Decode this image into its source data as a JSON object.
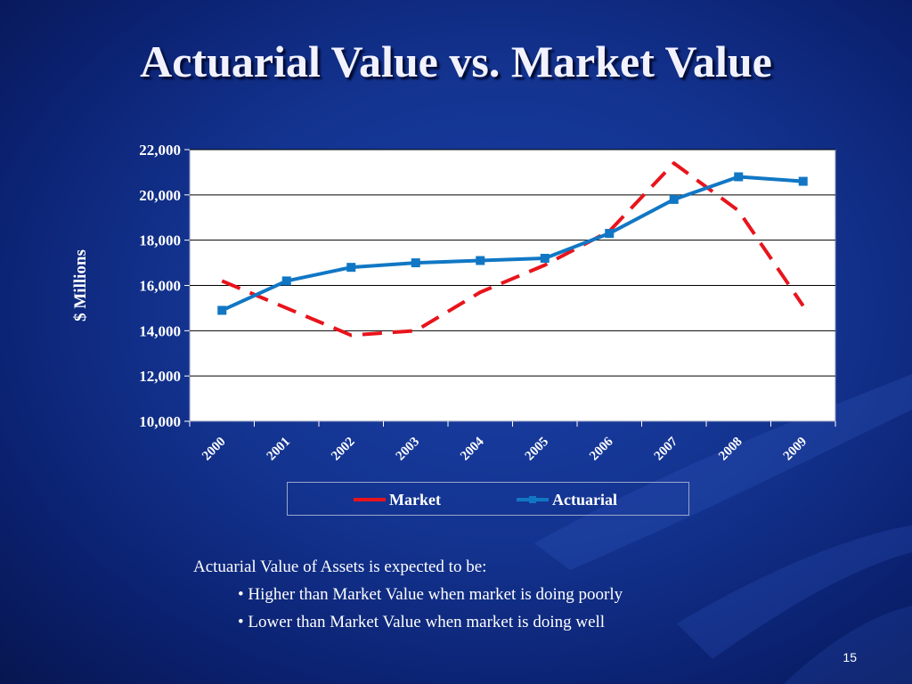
{
  "slide": {
    "title": "Actuarial Value vs. Market Value",
    "page_number": "15",
    "caption": {
      "intro": "Actuarial Value of Assets is expected to be:",
      "bullets": [
        "Higher than Market Value when market is doing poorly",
        "Lower than Market Value when market is doing well"
      ]
    }
  },
  "colors": {
    "market": "#e8141c",
    "actuarial": "#1177c4",
    "gridline": "#000000",
    "plot_background": "#ffffff"
  },
  "chart_data": {
    "type": "line",
    "title": "",
    "xlabel": "",
    "ylabel": "$ Millions",
    "categories": [
      "2000",
      "2001",
      "2002",
      "2003",
      "2004",
      "2005",
      "2006",
      "2007",
      "2008",
      "2009"
    ],
    "ylim": [
      10000,
      22000
    ],
    "yticks": [
      10000,
      12000,
      14000,
      16000,
      18000,
      20000,
      22000
    ],
    "ytick_labels": [
      "10,000",
      "12,000",
      "14,000",
      "16,000",
      "18,000",
      "20,000",
      "22,000"
    ],
    "grid": true,
    "legend": "bottom",
    "series": [
      {
        "name": "Market",
        "style": "dashed",
        "marker": "none",
        "values": [
          16200,
          15000,
          13800,
          14000,
          15700,
          16900,
          18400,
          21400,
          19300,
          15100
        ]
      },
      {
        "name": "Actuarial",
        "style": "solid",
        "marker": "square",
        "values": [
          14900,
          16200,
          16800,
          17000,
          17100,
          17200,
          18300,
          19800,
          20800,
          20600
        ]
      }
    ]
  }
}
